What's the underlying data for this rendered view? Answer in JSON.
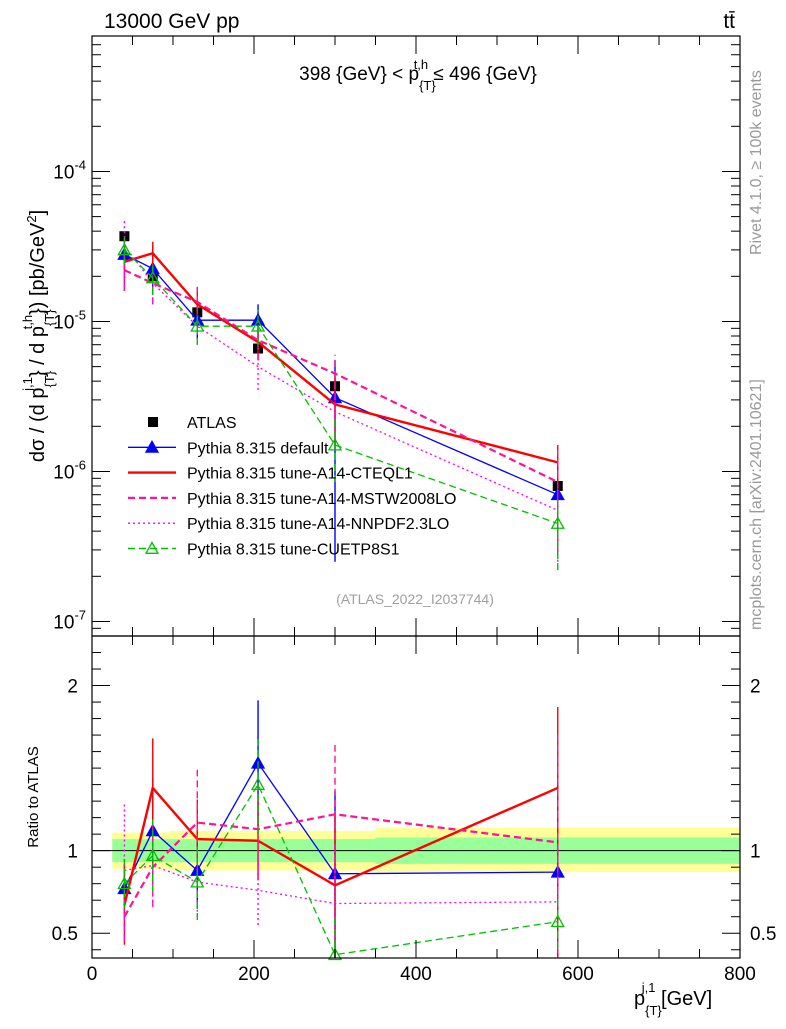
{
  "header": {
    "energy": "13000 GeV pp",
    "process": "tt̄"
  },
  "side_labels": {
    "rivet": "Rivet 4.1.0, ≥ 100k events",
    "mcplots": "mcplots.cern.ch [arXiv:2401.10621]"
  },
  "chart_data": [
    {
      "type": "line",
      "panel": "main",
      "title": "398 {GeV} < p_{T}^{t,h} ≤ 496 {GeV}",
      "watermark": "(ATLAS_2022_I2037744)",
      "xlabel": "p_{T}^{j,1} [GeV]",
      "ylabel": "dσ / (d p_{T}^{j,1} / d p_{T}^{t,h}) [pb/GeV^2]",
      "yscale": "log",
      "xlim": [
        0,
        800
      ],
      "ylim": [
        8e-08,
        0.0008
      ],
      "ytick_labels": [
        "10^-7",
        "10^-6",
        "10^-5",
        "10^-4"
      ],
      "ytick_values": [
        1e-07,
        1e-06,
        1e-05,
        0.0001
      ],
      "x": [
        40,
        75,
        130,
        205,
        300,
        575
      ],
      "data": {
        "name": "ATLAS",
        "values": [
          3.7e-05,
          2e-05,
          1.15e-05,
          6.6e-06,
          3.7e-06,
          8e-07
        ],
        "xerr": [
          15,
          20,
          35,
          40,
          50,
          225
        ]
      },
      "series": [
        {
          "name": "Pythia 8.315 default",
          "color": "#0000ff",
          "dash": "solid",
          "marker": "triangle-filled",
          "values": [
            2.8e-05,
            2.25e-05,
            1.02e-05,
            1.02e-05,
            3.1e-06,
            7e-07
          ],
          "err_lo": [
            2.2e-05,
            1.6e-05,
            7.5e-06,
            7.5e-06,
            2.5e-07,
            2.8e-07
          ],
          "err_hi": [
            3.6e-05,
            3.2e-05,
            1.4e-05,
            1.3e-05,
            5.5e-06,
            1.2e-06
          ]
        },
        {
          "name": "Pythia 8.315 tune-A14-CTEQL1",
          "color": "#ff0000",
          "dash": "solid",
          "marker": "none",
          "values": [
            2.5e-05,
            2.85e-05,
            1.3e-05,
            7.3e-06,
            2.8e-06,
            1.15e-06
          ],
          "err_lo": [
            1.6e-05,
            2.2e-05,
            1e-05,
            5.5e-06,
            1.4e-06,
            3e-07
          ],
          "err_hi": [
            3.3e-05,
            3.4e-05,
            1.7e-05,
            9e-06,
            4.2e-06,
            1.5e-06
          ]
        },
        {
          "name": "Pythia 8.315 tune-A14-MSTW2008LO",
          "color": "#ff1493",
          "dash": "dashed",
          "marker": "none",
          "values": [
            2.2e-05,
            1.8e-05,
            1.35e-05,
            7.5e-06,
            4.5e-06,
            8.5e-07
          ],
          "err_lo": [
            1.6e-05,
            1.3e-05,
            9.5e-06,
            5.5e-06,
            3e-06,
            2.8e-07
          ],
          "err_hi": [
            3e-05,
            2.4e-05,
            1.7e-05,
            9.5e-06,
            6e-06,
            1.4e-06
          ]
        },
        {
          "name": "Pythia 8.315 tune-A14-NNPDF2.3LO",
          "color": "#ff00ff",
          "dash": "dotted",
          "marker": "none",
          "values": [
            3.2e-05,
            1.8e-05,
            9.3e-06,
            5e-06,
            2.5e-06,
            5.5e-07
          ],
          "err_lo": [
            1.8e-05,
            1.3e-05,
            7e-06,
            3.5e-06,
            1.5e-06,
            2.5e-07
          ],
          "err_hi": [
            4.8e-05,
            2.3e-05,
            1.1e-05,
            6.5e-06,
            3.5e-06,
            8.5e-07
          ]
        },
        {
          "name": "Pythia 8.315 tune-CUETP8S1",
          "color": "#00c000",
          "dash": "dashed",
          "marker": "triangle-open",
          "values": [
            3e-05,
            1.95e-05,
            9.3e-06,
            9.3e-06,
            1.5e-06,
            4.5e-07
          ],
          "err_lo": [
            2.4e-05,
            1.5e-05,
            7e-06,
            7e-06,
            8.5e-07,
            2.2e-07
          ],
          "err_hi": [
            3.6e-05,
            2.4e-05,
            1.2e-05,
            1.2e-05,
            2.2e-06,
            6.5e-07
          ]
        }
      ]
    },
    {
      "type": "line",
      "panel": "ratio",
      "ylabel": "Ratio to ATLAS",
      "xlabel": "p_{T}^{j,1} [GeV]",
      "xlim": [
        0,
        800
      ],
      "ylim": [
        0.35,
        2.3
      ],
      "ytick_labels": [
        "0.5",
        "1",
        "2"
      ],
      "ytick_values": [
        0.5,
        1,
        2
      ],
      "xtick_labels": [
        "0",
        "200",
        "400",
        "600",
        "800"
      ],
      "xtick_values": [
        0,
        200,
        400,
        600,
        800
      ],
      "x": [
        40,
        75,
        130,
        205,
        300,
        575
      ],
      "band_edges": [
        25,
        55,
        95,
        165,
        245,
        350,
        800
      ],
      "band_inner": [
        [
          0.93,
          1.07
        ],
        [
          0.93,
          1.07
        ],
        [
          0.93,
          1.07
        ],
        [
          0.93,
          1.07
        ],
        [
          0.93,
          1.07
        ],
        [
          0.92,
          1.08
        ]
      ],
      "band_outer": [
        [
          0.89,
          1.11
        ],
        [
          0.89,
          1.11
        ],
        [
          0.88,
          1.12
        ],
        [
          0.88,
          1.12
        ],
        [
          0.88,
          1.12
        ],
        [
          0.87,
          1.14
        ]
      ],
      "series": [
        {
          "name": "Pythia 8.315 default",
          "color": "#0000ff",
          "dash": "solid",
          "marker": "triangle-filled",
          "values": [
            0.77,
            1.12,
            0.88,
            1.53,
            0.86,
            0.87
          ],
          "err_lo": [
            0.62,
            0.8,
            0.65,
            1.15,
            0.35,
            0.35
          ],
          "err_hi": [
            0.92,
            1.44,
            1.12,
            1.91,
            1.36,
            1.45
          ]
        },
        {
          "name": "Pythia 8.315 tune-A14-CTEQL1",
          "color": "#ff0000",
          "dash": "solid",
          "marker": "none",
          "values": [
            0.67,
            1.38,
            1.07,
            1.06,
            0.79,
            1.38
          ],
          "err_lo": [
            0.43,
            1.1,
            0.86,
            0.82,
            0.35,
            0.35
          ],
          "err_hi": [
            0.91,
            1.68,
            1.31,
            1.3,
            1.23,
            1.87
          ]
        },
        {
          "name": "Pythia 8.315 tune-A14-MSTW2008LO",
          "color": "#ff1493",
          "dash": "dashed",
          "marker": "none",
          "values": [
            0.6,
            0.9,
            1.17,
            1.13,
            1.22,
            1.05
          ],
          "err_lo": [
            0.45,
            0.66,
            0.85,
            0.83,
            0.8,
            0.4
          ],
          "err_hi": [
            0.75,
            1.14,
            1.49,
            1.43,
            1.64,
            1.7
          ]
        },
        {
          "name": "Pythia 8.315 tune-A14-NNPDF2.3LO",
          "color": "#ff00ff",
          "dash": "dotted",
          "marker": "none",
          "values": [
            0.88,
            0.91,
            0.81,
            0.76,
            0.68,
            0.69
          ],
          "err_lo": [
            0.48,
            0.66,
            0.6,
            0.55,
            0.35,
            0.35
          ],
          "err_hi": [
            1.28,
            1.16,
            1.02,
            0.97,
            1.01,
            1.03
          ]
        },
        {
          "name": "Pythia 8.315 tune-CUETP8S1",
          "color": "#00c000",
          "dash": "dashed",
          "marker": "triangle-open",
          "values": [
            0.8,
            0.97,
            0.81,
            1.4,
            0.37,
            0.57
          ],
          "err_lo": [
            0.65,
            0.75,
            0.58,
            1.1,
            0.35,
            0.4
          ],
          "err_hi": [
            0.95,
            1.19,
            1.04,
            1.7,
            0.6,
            0.74
          ]
        }
      ]
    }
  ]
}
